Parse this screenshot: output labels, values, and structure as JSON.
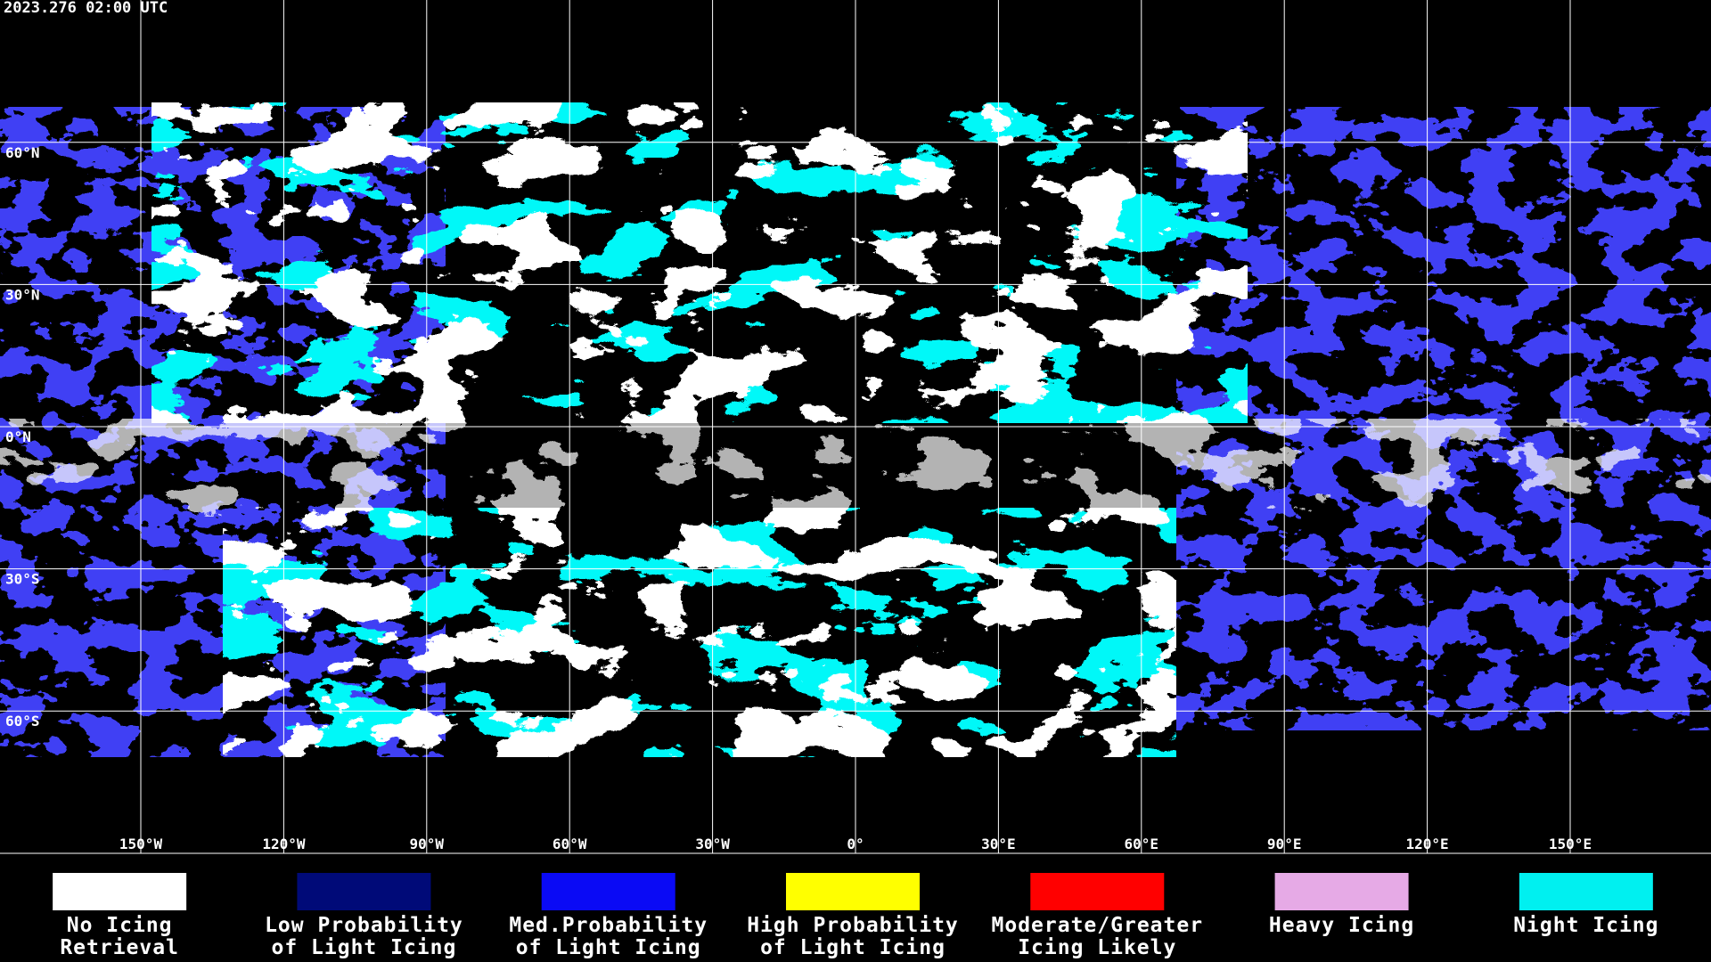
{
  "timestamp": "2023.276 02:00 UTC",
  "map": {
    "lat_ticks": [
      {
        "value": 60,
        "label": "60°N"
      },
      {
        "value": 30,
        "label": "30°N"
      },
      {
        "value": 0,
        "label": "0°N"
      },
      {
        "value": -30,
        "label": "30°S"
      },
      {
        "value": -60,
        "label": "60°S"
      }
    ],
    "lon_ticks": [
      {
        "value": -150,
        "label": "150°W"
      },
      {
        "value": -120,
        "label": "120°W"
      },
      {
        "value": -90,
        "label": "90°W"
      },
      {
        "value": -60,
        "label": "60°W"
      },
      {
        "value": -30,
        "label": "30°W"
      },
      {
        "value": 0,
        "label": "0°"
      },
      {
        "value": 30,
        "label": "30°E"
      },
      {
        "value": 60,
        "label": "60°E"
      },
      {
        "value": 90,
        "label": "90°E"
      },
      {
        "value": 120,
        "label": "120°E"
      },
      {
        "value": 150,
        "label": "150°E"
      }
    ]
  },
  "legend": [
    {
      "color": "#ffffff",
      "lines": [
        "No Icing",
        "Retrieval"
      ]
    },
    {
      "color": "#000a78",
      "lines": [
        "Low Probability",
        "of Light Icing"
      ]
    },
    {
      "color": "#0a0af5",
      "lines": [
        "Med.Probability",
        "of Light Icing"
      ]
    },
    {
      "color": "#ffff00",
      "lines": [
        "High Probability",
        "of Light Icing"
      ]
    },
    {
      "color": "#ff0000",
      "lines": [
        "Moderate/Greater",
        "Icing Likely"
      ]
    },
    {
      "color": "#e6aae6",
      "lines": [
        "Heavy Icing"
      ]
    },
    {
      "color": "#00f0f0",
      "lines": [
        "Night Icing"
      ]
    }
  ]
}
